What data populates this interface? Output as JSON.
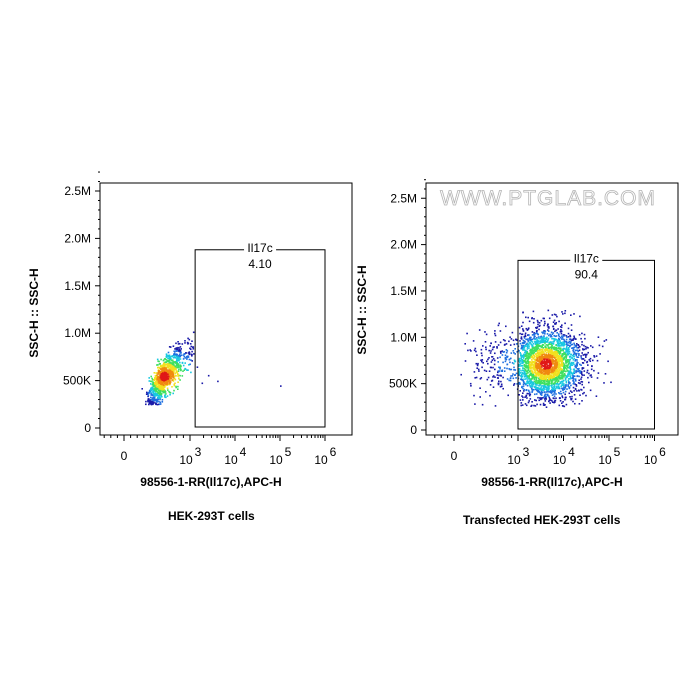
{
  "watermark": "WWW.PTGLAB.COM",
  "chart_data": [
    {
      "type": "scatter",
      "plot_kind": "flow cytometry pseudocolor density dot plot",
      "title": "",
      "xlabel": "98556-1-RR(Il17c),APC-H",
      "ylabel": "SSC-H :: SSC-H",
      "caption": "HEK-293T cells",
      "x_scale": "biexponential",
      "y_scale": "linear",
      "xlim": [
        -2000,
        1000000
      ],
      "ylim": [
        0,
        2750000
      ],
      "x_ticks": [
        {
          "value": 0,
          "base": "0",
          "exp": ""
        },
        {
          "value": 1000,
          "base": "10",
          "exp": "3"
        },
        {
          "value": 10000,
          "base": "10",
          "exp": "4"
        },
        {
          "value": 100000,
          "base": "10",
          "exp": "5"
        },
        {
          "value": 1000000,
          "base": "10",
          "exp": "6"
        }
      ],
      "y_ticks": [
        {
          "value": 0,
          "label": "0"
        },
        {
          "value": 500000,
          "label": "500K"
        },
        {
          "value": 1000000,
          "label": "1.0M"
        },
        {
          "value": 1500000,
          "label": "1.5M"
        },
        {
          "value": 2000000,
          "label": "2.0M"
        },
        {
          "value": 2500000,
          "label": "2.5M"
        }
      ],
      "gate": {
        "name": "Il17c",
        "percent": "4.10",
        "x_range": [
          1300,
          1000000
        ],
        "y_range": [
          0,
          1880000
        ]
      },
      "population": {
        "x_center": 600,
        "x_spread_decades": 0.16,
        "y_center": 550000,
        "y_spread": 160000,
        "y_max": 1020000,
        "count": 1100
      },
      "outliers": [
        [
          1400,
          650000
        ],
        [
          2500,
          560000
        ],
        [
          1800,
          480000
        ],
        [
          4000,
          500000
        ],
        [
          100000,
          450000
        ]
      ],
      "color_scale": [
        "#1a1aa8",
        "#1e6fe0",
        "#18c8e0",
        "#3ee060",
        "#f2e020",
        "#f08a10",
        "#e01818"
      ]
    },
    {
      "type": "scatter",
      "plot_kind": "flow cytometry pseudocolor density dot plot",
      "title": "",
      "xlabel": "98556-1-RR(Il17c),APC-H",
      "ylabel": "SSC-H :: SSC-H",
      "caption": "Transfected HEK-293T cells",
      "x_scale": "biexponential",
      "y_scale": "linear",
      "xlim": [
        -2000,
        1000000
      ],
      "ylim": [
        0,
        2750000
      ],
      "x_ticks": [
        {
          "value": 0,
          "base": "0",
          "exp": ""
        },
        {
          "value": 1000,
          "base": "10",
          "exp": "3"
        },
        {
          "value": 10000,
          "base": "10",
          "exp": "4"
        },
        {
          "value": 100000,
          "base": "10",
          "exp": "5"
        },
        {
          "value": 1000000,
          "base": "10",
          "exp": "6"
        }
      ],
      "y_ticks": [
        {
          "value": 0,
          "label": "0"
        },
        {
          "value": 500000,
          "label": "500K"
        },
        {
          "value": 1000000,
          "label": "1.0M"
        },
        {
          "value": 1500000,
          "label": "1.5M"
        },
        {
          "value": 2000000,
          "label": "2.0M"
        },
        {
          "value": 2500000,
          "label": "2.5M"
        }
      ],
      "gate": {
        "name": "Il17c",
        "percent": "90.4",
        "x_range": [
          1000,
          1000000
        ],
        "y_range": [
          0,
          1830000
        ]
      },
      "population": {
        "x_center": 4000,
        "x_spread_decades": 0.42,
        "y_center": 720000,
        "y_spread": 190000,
        "y_max": 1300000,
        "count": 2600
      },
      "outliers": [
        [
          600,
          900000
        ],
        [
          500,
          750000
        ],
        [
          300,
          380000
        ],
        [
          30000,
          380000
        ]
      ],
      "color_scale": [
        "#1a1aa8",
        "#1e6fe0",
        "#18c8e0",
        "#3ee060",
        "#f2e020",
        "#f08a10",
        "#e01818"
      ]
    }
  ]
}
